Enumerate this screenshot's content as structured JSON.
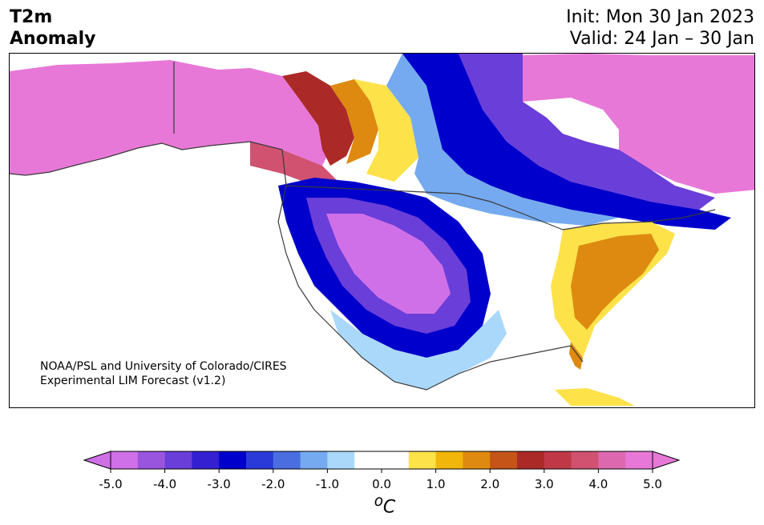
{
  "title": {
    "line1": "T2m",
    "line2": "Anomaly"
  },
  "dates": {
    "init": "Init: Mon 30 Jan 2023",
    "valid": "Valid: 24 Jan – 30 Jan"
  },
  "credit": {
    "line1": "NOAA/PSL and University of Colorado/CIRES",
    "line2": "Experimental LIM Forecast (v1.2)"
  },
  "colorbar": {
    "unit_base": "o",
    "unit_sup": "C",
    "ticks": [
      "-5.0",
      "-4.0",
      "-3.0",
      "-2.0",
      "-1.0",
      "0.0",
      "1.0",
      "2.0",
      "3.0",
      "4.0",
      "5.0"
    ],
    "colors": [
      "#d070e8",
      "#9a55de",
      "#6a3ed8",
      "#3420d0",
      "#0000cc",
      "#2a3ad8",
      "#4a6ee0",
      "#75aaf0",
      "#aad8fa",
      "#ffffff",
      "#ffffff",
      "#fde24a",
      "#f2b60a",
      "#de8a10",
      "#c45418",
      "#ab2a28",
      "#c03848",
      "#d05270",
      "#de68b0",
      "#e878d8"
    ],
    "min_color": "#d070e8",
    "max_color": "#e878d8"
  },
  "colors": {
    "land_line": "#3a3a3a",
    "warm_extreme": "#e878d8",
    "cold_extreme": "#d070e8"
  }
}
